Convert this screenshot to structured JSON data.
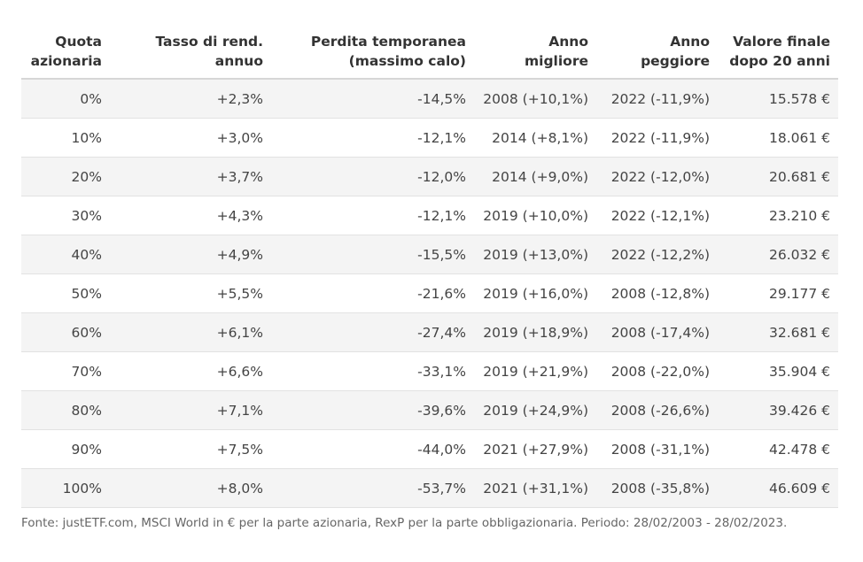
{
  "table": {
    "headers": [
      "Quota\nazionaria",
      "Tasso di rend.\nannuo",
      "Perdita temporanea\n(massimo calo)",
      "Anno\nmigliore",
      "Anno\npeggiore",
      "Valore finale\ndopo 20 anni"
    ],
    "rows": [
      [
        "0%",
        "+2,3%",
        "-14,5%",
        "2008 (+10,1%)",
        "2022 (-11,9%)",
        "15.578 €"
      ],
      [
        "10%",
        "+3,0%",
        "-12,1%",
        "2014 (+8,1%)",
        "2022 (-11,9%)",
        "18.061 €"
      ],
      [
        "20%",
        "+3,7%",
        "-12,0%",
        "2014 (+9,0%)",
        "2022 (-12,0%)",
        "20.681 €"
      ],
      [
        "30%",
        "+4,3%",
        "-12,1%",
        "2019 (+10,0%)",
        "2022 (-12,1%)",
        "23.210 €"
      ],
      [
        "40%",
        "+4,9%",
        "-15,5%",
        "2019 (+13,0%)",
        "2022 (-12,2%)",
        "26.032 €"
      ],
      [
        "50%",
        "+5,5%",
        "-21,6%",
        "2019 (+16,0%)",
        "2008 (-12,8%)",
        "29.177 €"
      ],
      [
        "60%",
        "+6,1%",
        "-27,4%",
        "2019 (+18,9%)",
        "2008 (-17,4%)",
        "32.681 €"
      ],
      [
        "70%",
        "+6,6%",
        "-33,1%",
        "2019 (+21,9%)",
        "2008 (-22,0%)",
        "35.904 €"
      ],
      [
        "80%",
        "+7,1%",
        "-39,6%",
        "2019 (+24,9%)",
        "2008 (-26,6%)",
        "39.426 €"
      ],
      [
        "90%",
        "+7,5%",
        "-44,0%",
        "2021 (+27,9%)",
        "2008 (-31,1%)",
        "42.478 €"
      ],
      [
        "100%",
        "+8,0%",
        "-53,7%",
        "2021 (+31,1%)",
        "2008 (-35,8%)",
        "46.609 €"
      ]
    ]
  },
  "footer": "Fonte: justETF.com, MSCI World in € per la parte azionaria, RexP per la parte obbligazionaria. Periodo: 28/02/2003 - 28/02/2023."
}
